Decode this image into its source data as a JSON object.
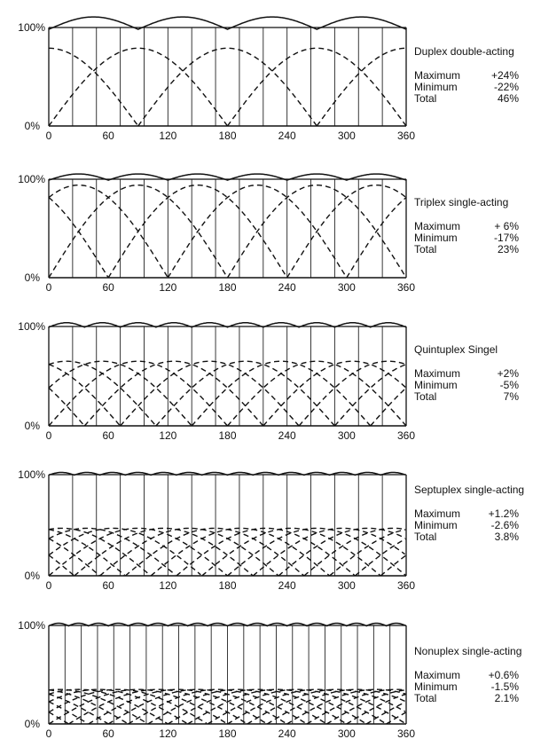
{
  "chart_data": [
    {
      "type": "line",
      "title": "Duplex double-acting",
      "cylinders": 2,
      "stroke_phase_offset_deg": 90,
      "x_range": [
        0,
        360
      ],
      "y_range": [
        0,
        100
      ],
      "y_tick_labels": [
        "0%",
        "100%"
      ],
      "x_tick_labels": [
        "0",
        "60",
        "120",
        "180",
        "240",
        "300",
        "360"
      ],
      "vertical_grid_lines": 15,
      "series": [
        {
          "name": "",
          "style": "dashed",
          "kind": "individual cylinder flow"
        },
        {
          "name": "",
          "style": "solid",
          "kind": "total flow"
        }
      ],
      "stats": [
        {
          "label": "Maximum",
          "value": "+24%"
        },
        {
          "label": "Minimum",
          "value": "-22%"
        },
        {
          "label": "Total",
          "value": "46%"
        }
      ]
    },
    {
      "type": "line",
      "title": "Triplex single-acting",
      "cylinders": 3,
      "stroke_phase_offset_deg": 120,
      "x_range": [
        0,
        360
      ],
      "y_range": [
        0,
        100
      ],
      "y_tick_labels": [
        "0%",
        "100%"
      ],
      "x_tick_labels": [
        "0",
        "60",
        "120",
        "180",
        "240",
        "300",
        "360"
      ],
      "vertical_grid_lines": 15,
      "series": [
        {
          "name": "",
          "style": "dashed",
          "kind": "individual cylinder flow"
        },
        {
          "name": "",
          "style": "solid",
          "kind": "total flow"
        }
      ],
      "stats": [
        {
          "label": "Maximum",
          "value": "+ 6%"
        },
        {
          "label": "Minimum",
          "value": "-17%"
        },
        {
          "label": "Total",
          "value": "23%"
        }
      ]
    },
    {
      "type": "line",
      "title": "Quintuplex Singel",
      "cylinders": 5,
      "stroke_phase_offset_deg": 72,
      "x_range": [
        0,
        360
      ],
      "y_range": [
        0,
        100
      ],
      "y_tick_labels": [
        "0%",
        "100%"
      ],
      "x_tick_labels": [
        "0",
        "60",
        "120",
        "180",
        "240",
        "300",
        "360"
      ],
      "vertical_grid_lines": 15,
      "series": [
        {
          "name": "",
          "style": "dashed",
          "kind": "individual cylinder flow"
        },
        {
          "name": "",
          "style": "solid",
          "kind": "total flow"
        }
      ],
      "stats": [
        {
          "label": "Maximum",
          "value": "+2%"
        },
        {
          "label": "Minimum",
          "value": "-5%"
        },
        {
          "label": "Total",
          "value": "7%"
        }
      ]
    },
    {
      "type": "line",
      "title": "Septuplex single-acting",
      "cylinders": 7,
      "stroke_phase_offset_deg": 51.43,
      "x_range": [
        0,
        360
      ],
      "y_range": [
        0,
        100
      ],
      "y_tick_labels": [
        "0%",
        "100%"
      ],
      "x_tick_labels": [
        "0",
        "60",
        "120",
        "180",
        "240",
        "300",
        "360"
      ],
      "vertical_grid_lines": 15,
      "series": [
        {
          "name": "",
          "style": "dashed",
          "kind": "individual cylinder flow"
        },
        {
          "name": "",
          "style": "solid",
          "kind": "total flow"
        }
      ],
      "stats": [
        {
          "label": "Maximum",
          "value": "+1.2%"
        },
        {
          "label": "Minimum",
          "value": "-2.6%"
        },
        {
          "label": "Total",
          "value": "3.8%"
        }
      ]
    },
    {
      "type": "line",
      "title": "Nonuplex single-acting",
      "cylinders": 9,
      "stroke_phase_offset_deg": 40,
      "x_range": [
        0,
        360
      ],
      "y_range": [
        0,
        100
      ],
      "y_tick_labels": [
        "0%",
        "100%"
      ],
      "x_tick_labels": [
        "0",
        "60",
        "120",
        "180",
        "240",
        "300",
        "360"
      ],
      "vertical_grid_lines": 22,
      "series": [
        {
          "name": "",
          "style": "dashed",
          "kind": "individual cylinder flow"
        },
        {
          "name": "",
          "style": "solid",
          "kind": "total flow"
        }
      ],
      "stats": [
        {
          "label": "Maximum",
          "value": "+0.6%"
        },
        {
          "label": "Minimum",
          "value": "-1.5%"
        },
        {
          "label": "Total",
          "value": "2.1%"
        }
      ]
    }
  ]
}
